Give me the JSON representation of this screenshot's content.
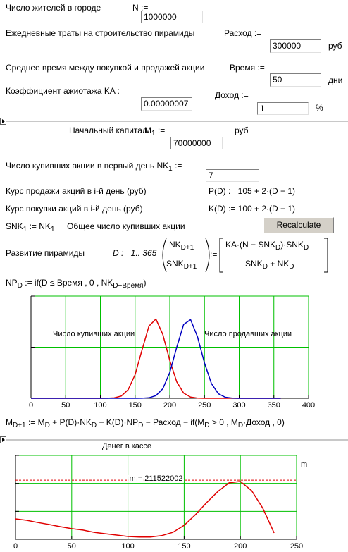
{
  "form": {
    "population": {
      "label": "Число жителей в городе",
      "var": "N :=",
      "value": "1000000"
    },
    "spending": {
      "label": "Ежедневные траты на строительство пирамиды",
      "var": "Расход :=",
      "value": "300000",
      "unit": "руб"
    },
    "holding_time": {
      "label": "Среднее время между покупкой и продажей акции",
      "var": "Время :=",
      "value": "50",
      "unit": "дни"
    },
    "hype": {
      "label": "Коэффициент ажиотажа  KA :=",
      "value": "0.00000007"
    },
    "income": {
      "var": "Доход :=",
      "value": "1",
      "unit": "%"
    },
    "capital": {
      "label": "Начальный капитал",
      "var": [
        [
          "M",
          "1"
        ],
        " :="
      ],
      "value": "70000000",
      "unit": "руб"
    },
    "first_buyers": {
      "label": [
        "Число купивших акции в первый день  ",
        [
          "NK",
          "1"
        ],
        " :="
      ],
      "value": "7"
    },
    "sell_price": {
      "label": "Курс продажи акций в i-й день (руб)",
      "formula": "P(D) := 105 + 2·(D − 1)"
    },
    "buy_price": {
      "label": "Курс покупки акций в i-й день (руб)",
      "formula": "K(D) := 100 + 2·(D − 1)"
    },
    "total": {
      "formula": [
        [
          "SNK",
          "1"
        ],
        " := ",
        [
          "NK",
          "1"
        ]
      ],
      "label": "Общее число купивших акции"
    },
    "button": "Recalculate",
    "growth": {
      "label": "Развитие пирамиды",
      "range": "D := 1.. 365",
      "lhs_top": [
        [
          "NK",
          "D+1"
        ]
      ],
      "lhs_bottom": [
        [
          "SNK",
          "D+1"
        ]
      ],
      "assign": ":=",
      "rhs_top": [
        "KA·(N − ",
        [
          "SNK",
          "D"
        ],
        ")·",
        [
          "SNK",
          "D"
        ]
      ],
      "rhs_bottom": [
        [
          "SNK",
          "D"
        ],
        " + ",
        [
          "NK",
          "D"
        ]
      ]
    },
    "np": [
      [
        "NP",
        "D"
      ],
      " := if(D ≤ Время , 0 , ",
      [
        "NK",
        "D−Время"
      ],
      ")"
    ],
    "money_formula": [
      [
        "M",
        "D+1"
      ],
      " := ",
      [
        "M",
        "D"
      ],
      " + P(D)·",
      [
        "NK",
        "D"
      ],
      " − K(D)·",
      [
        "NP",
        "D"
      ],
      " − Расход − if(",
      [
        "M",
        "D"
      ],
      " > 0 , ",
      [
        "M",
        "D"
      ],
      "·Доход , 0)"
    ]
  },
  "chart_data": [
    {
      "type": "line",
      "x": [
        0,
        10,
        20,
        30,
        40,
        50,
        60,
        70,
        80,
        90,
        100,
        110,
        120,
        130,
        140,
        150,
        160,
        170,
        180,
        190,
        200,
        210,
        220,
        230,
        240,
        250,
        260,
        270,
        280,
        290,
        300,
        310,
        320,
        330,
        340,
        350,
        360
      ],
      "series": [
        {
          "name": "Число купивших акции",
          "color": "#e00000",
          "values": [
            0,
            0,
            0,
            0,
            0,
            0,
            0,
            0,
            0,
            0,
            0,
            0.001,
            0.004,
            0.022,
            0.084,
            0.232,
            0.473,
            0.706,
            0.775,
            0.625,
            0.37,
            0.161,
            0.051,
            0.012,
            0.002,
            0,
            0,
            0,
            0,
            0,
            0,
            0,
            0,
            0,
            0,
            0,
            0
          ]
        },
        {
          "name": "Число продавших акции",
          "color": "#0000c0",
          "values": [
            0,
            0,
            0,
            0,
            0,
            0,
            0,
            0,
            0,
            0,
            0,
            0,
            0,
            0,
            0,
            0,
            0.001,
            0.005,
            0.026,
            0.094,
            0.253,
            0.5,
            0.723,
            0.77,
            0.601,
            0.345,
            0.145,
            0.045,
            0.01,
            0.002,
            0,
            0,
            0,
            0,
            0,
            0,
            0
          ]
        }
      ],
      "xlim": [
        0,
        400
      ],
      "xticks": [
        0,
        50,
        100,
        150,
        200,
        250,
        300,
        350,
        400
      ],
      "ylim": [
        0,
        1
      ],
      "grid": true,
      "grid_color": "#00c000"
    },
    {
      "type": "line",
      "title": "Денег в кассе",
      "ylabel": "m",
      "x": [
        0,
        10,
        20,
        30,
        40,
        50,
        60,
        70,
        80,
        90,
        100,
        110,
        120,
        130,
        140,
        150,
        160,
        170,
        180,
        190,
        200,
        210,
        220,
        230
      ],
      "series": [
        {
          "color": "#e00000",
          "values": [
            73000000,
            68000000,
            60000000,
            53000000,
            45000000,
            38000000,
            33000000,
            25000000,
            20000000,
            15000000,
            10000000,
            8000000,
            8000000,
            13000000,
            25000000,
            50000000,
            88000000,
            131000000,
            171000000,
            202000000,
            207000000,
            174000000,
            111000000,
            23000000
          ]
        }
      ],
      "hline": {
        "value": 211522002,
        "label": "m = 211522002",
        "color": "#e00000"
      },
      "xlim": [
        0,
        250
      ],
      "xticks": [
        0,
        50,
        100,
        150,
        200,
        250
      ],
      "ylim": [
        0,
        300000000
      ],
      "grid": true,
      "grid_color": "#00c000"
    }
  ]
}
